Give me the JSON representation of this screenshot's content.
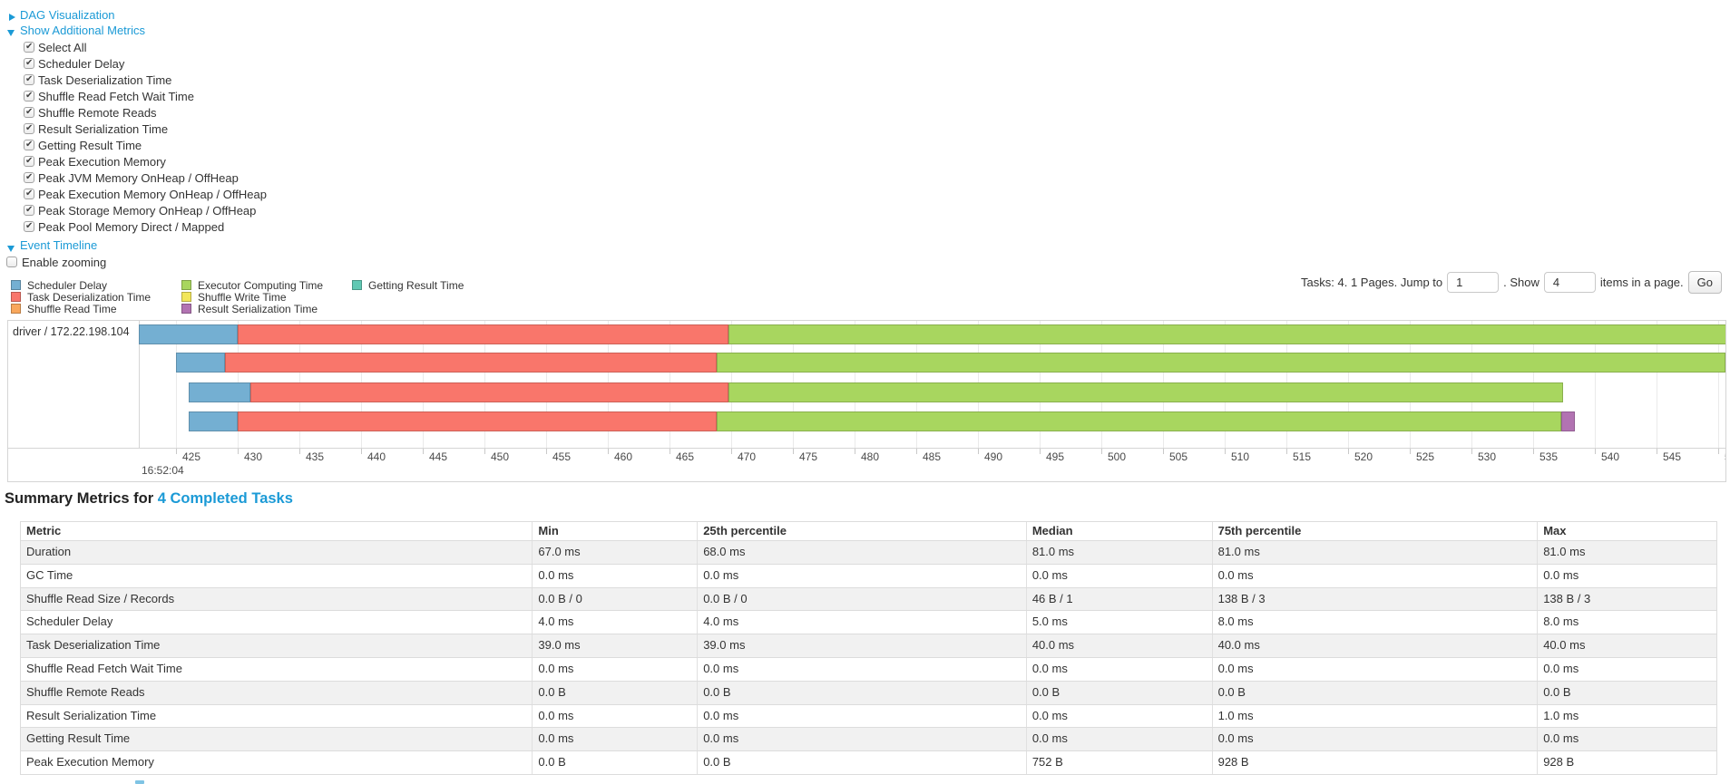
{
  "panel": {
    "dag_link": "DAG Visualization",
    "metrics_link": "Show Additional Metrics",
    "metric_checkboxes": [
      {
        "label": "Select All",
        "checked": true
      },
      {
        "label": "Scheduler Delay",
        "checked": true
      },
      {
        "label": "Task Deserialization Time",
        "checked": true
      },
      {
        "label": "Shuffle Read Fetch Wait Time",
        "checked": true
      },
      {
        "label": "Shuffle Remote Reads",
        "checked": true
      },
      {
        "label": "Result Serialization Time",
        "checked": true
      },
      {
        "label": "Getting Result Time",
        "checked": true
      },
      {
        "label": "Peak Execution Memory",
        "checked": true
      },
      {
        "label": "Peak JVM Memory OnHeap / OffHeap",
        "checked": true
      },
      {
        "label": "Peak Execution Memory OnHeap / OffHeap",
        "checked": true
      },
      {
        "label": "Peak Storage Memory OnHeap / OffHeap",
        "checked": true
      },
      {
        "label": "Peak Pool Memory Direct / Mapped",
        "checked": true
      }
    ],
    "timeline_link": "Event Timeline",
    "enable_zooming": {
      "label": "Enable zooming",
      "checked": false
    }
  },
  "pagination": {
    "prefix": "Tasks: 4. 1 Pages. Jump to",
    "jump_value": "1",
    "mid": ". Show",
    "show_value": "4",
    "suffix": "items in a page.",
    "go_label": "Go"
  },
  "timeline": {
    "executor_label": "driver / 172.22.198.104",
    "legend_columns": [
      [
        {
          "metric": "scheduler_delay",
          "label": "Scheduler Delay"
        },
        {
          "metric": "task_deserialization",
          "label": "Task Deserialization Time"
        },
        {
          "metric": "shuffle_read",
          "label": "Shuffle Read Time"
        }
      ],
      [
        {
          "metric": "executor_computing",
          "label": "Executor Computing Time"
        },
        {
          "metric": "shuffle_write",
          "label": "Shuffle Write Time"
        },
        {
          "metric": "result_serialization",
          "label": "Result Serialization Time"
        }
      ],
      [
        {
          "metric": "getting_result",
          "label": "Getting Result Time"
        }
      ]
    ],
    "axis": {
      "tick_start": 425,
      "tick_end": 550,
      "tick_step": 5,
      "major_label": "16:52:04"
    },
    "rows": [
      {
        "segments": [
          {
            "metric": "scheduler_delay",
            "start": 422.0,
            "end": 430.0
          },
          {
            "metric": "task_deserialization",
            "start": 430.0,
            "end": 469.8
          },
          {
            "metric": "executor_computing",
            "start": 469.8,
            "end": 551.5
          }
        ]
      },
      {
        "segments": [
          {
            "metric": "scheduler_delay",
            "start": 425.0,
            "end": 429.0
          },
          {
            "metric": "task_deserialization",
            "start": 429.0,
            "end": 468.8
          },
          {
            "metric": "executor_computing",
            "start": 468.8,
            "end": 550.6
          }
        ]
      },
      {
        "segments": [
          {
            "metric": "scheduler_delay",
            "start": 426.0,
            "end": 431.0
          },
          {
            "metric": "task_deserialization",
            "start": 431.0,
            "end": 469.8
          },
          {
            "metric": "executor_computing",
            "start": 469.8,
            "end": 537.4
          }
        ]
      },
      {
        "segments": [
          {
            "metric": "scheduler_delay",
            "start": 426.0,
            "end": 430.0
          },
          {
            "metric": "task_deserialization",
            "start": 430.0,
            "end": 468.8
          },
          {
            "metric": "executor_computing",
            "start": 468.8,
            "end": 537.3
          },
          {
            "metric": "result_serialization",
            "start": 537.3,
            "end": 538.4
          }
        ]
      }
    ]
  },
  "summary": {
    "title_prefix": "Summary Metrics for ",
    "title_link": "4 Completed Tasks",
    "columns": [
      "Metric",
      "Min",
      "25th percentile",
      "Median",
      "75th percentile",
      "Max"
    ],
    "rows": [
      [
        "Duration",
        "67.0 ms",
        "68.0 ms",
        "81.0 ms",
        "81.0 ms",
        "81.0 ms"
      ],
      [
        "GC Time",
        "0.0 ms",
        "0.0 ms",
        "0.0 ms",
        "0.0 ms",
        "0.0 ms"
      ],
      [
        "Shuffle Read Size / Records",
        "0.0 B / 0",
        "0.0 B / 0",
        "46 B / 1",
        "138 B / 3",
        "138 B / 3"
      ],
      [
        "Scheduler Delay",
        "4.0 ms",
        "4.0 ms",
        "5.0 ms",
        "8.0 ms",
        "8.0 ms"
      ],
      [
        "Task Deserialization Time",
        "39.0 ms",
        "39.0 ms",
        "40.0 ms",
        "40.0 ms",
        "40.0 ms"
      ],
      [
        "Shuffle Read Fetch Wait Time",
        "0.0 ms",
        "0.0 ms",
        "0.0 ms",
        "0.0 ms",
        "0.0 ms"
      ],
      [
        "Shuffle Remote Reads",
        "0.0 B",
        "0.0 B",
        "0.0 B",
        "0.0 B",
        "0.0 B"
      ],
      [
        "Result Serialization Time",
        "0.0 ms",
        "0.0 ms",
        "0.0 ms",
        "1.0 ms",
        "1.0 ms"
      ],
      [
        "Getting Result Time",
        "0.0 ms",
        "0.0 ms",
        "0.0 ms",
        "0.0 ms",
        "0.0 ms"
      ],
      [
        "Peak Execution Memory",
        "0.0 B",
        "0.0 B",
        "752 B",
        "928 B",
        "928 B"
      ]
    ]
  },
  "colors": {
    "link": "#1b9ad6",
    "scheduler_delay": "#74AFD2",
    "task_deserialization": "#F9766B",
    "shuffle_read": "#F9A75C",
    "executor_computing": "#A8D65F",
    "shuffle_write": "#F2E65B",
    "result_serialization": "#B273B2",
    "getting_result": "#60C8B3"
  }
}
